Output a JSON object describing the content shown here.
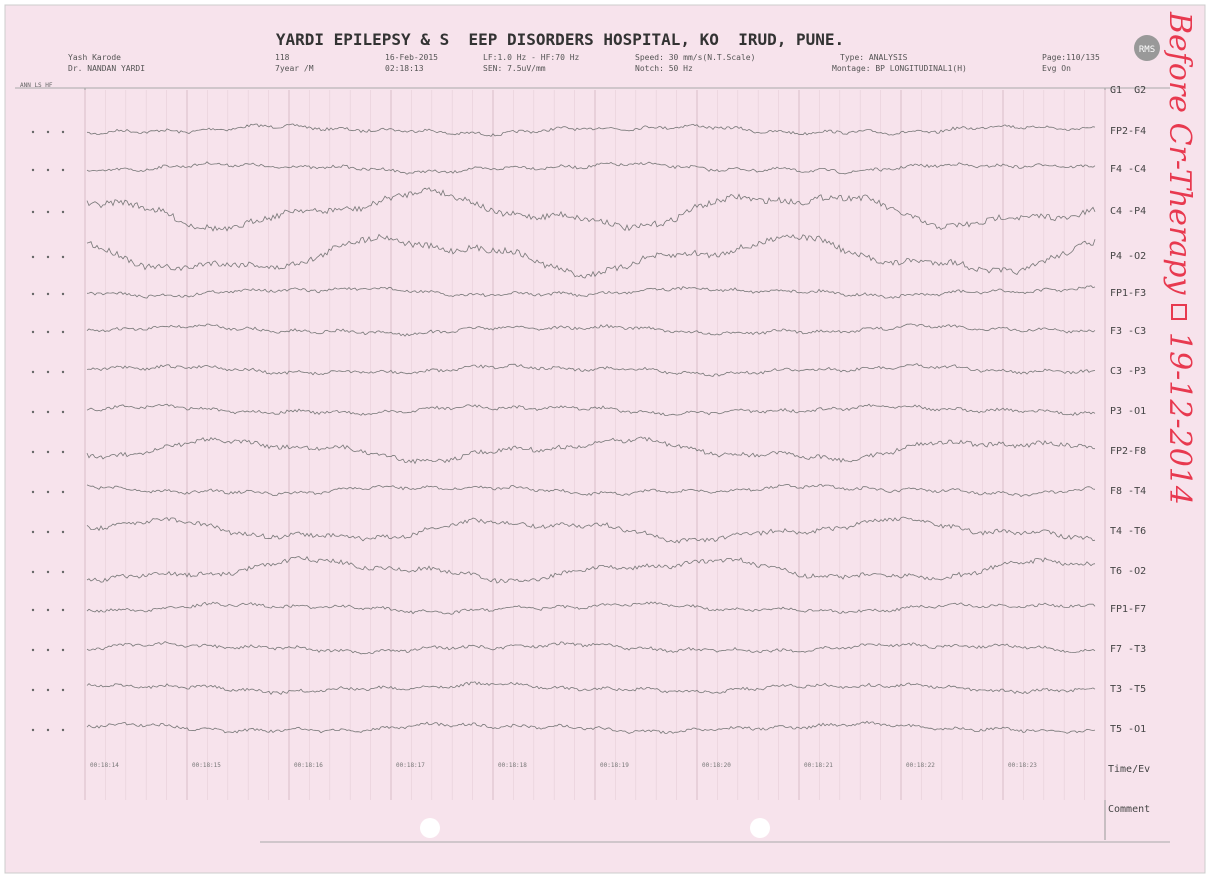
{
  "header": {
    "title": "YARDI EPILEPSY & S  EEP DISORDERS HOSPITAL, KO  IRUD, PUNE.",
    "row1": [
      "Yash Karode",
      "118",
      "16-Feb-2015",
      "LF:1.0 Hz - HF:70 Hz",
      "Speed: 30 mm/s(N.T.Scale)",
      "Type: ANALYSIS",
      "Page:110/135"
    ],
    "row2": [
      "Dr. NANDAN YARDI",
      "7year /M",
      "02:18:13",
      "SEN: 7.5uV/mm",
      "Notch: 50 Hz",
      "Montage: BP LONGITUDINAL1(H)",
      "Evg On"
    ],
    "logo": "RMS",
    "columns": "ANN LS HF"
  },
  "channels": {
    "heading": "G1  G2",
    "labels": [
      "FP2-F4",
      "F4 -C4",
      "C4 -P4",
      "P4 -O2",
      "FP1-F3",
      "F3 -C3",
      "C3 -P3",
      "P3 -O1",
      "FP2-F8",
      "F8 -T4",
      "T4 -T6",
      "T6 -O2",
      "FP1-F7",
      "F7 -T3",
      "T3 -T5",
      "T5 -O1"
    ]
  },
  "time_axis": {
    "label": "Time/Ev",
    "stamps": [
      "00:18:14",
      "00:18:15",
      "00:18:16",
      "00:18:17",
      "00:18:18",
      "00:18:19",
      "00:18:20",
      "00:18:21",
      "00:18:22",
      "00:18:23"
    ]
  },
  "comment_label": "Comment",
  "handwriting": {
    "note": "Before Cr-Therapy",
    "date": "19-12-2014"
  }
}
